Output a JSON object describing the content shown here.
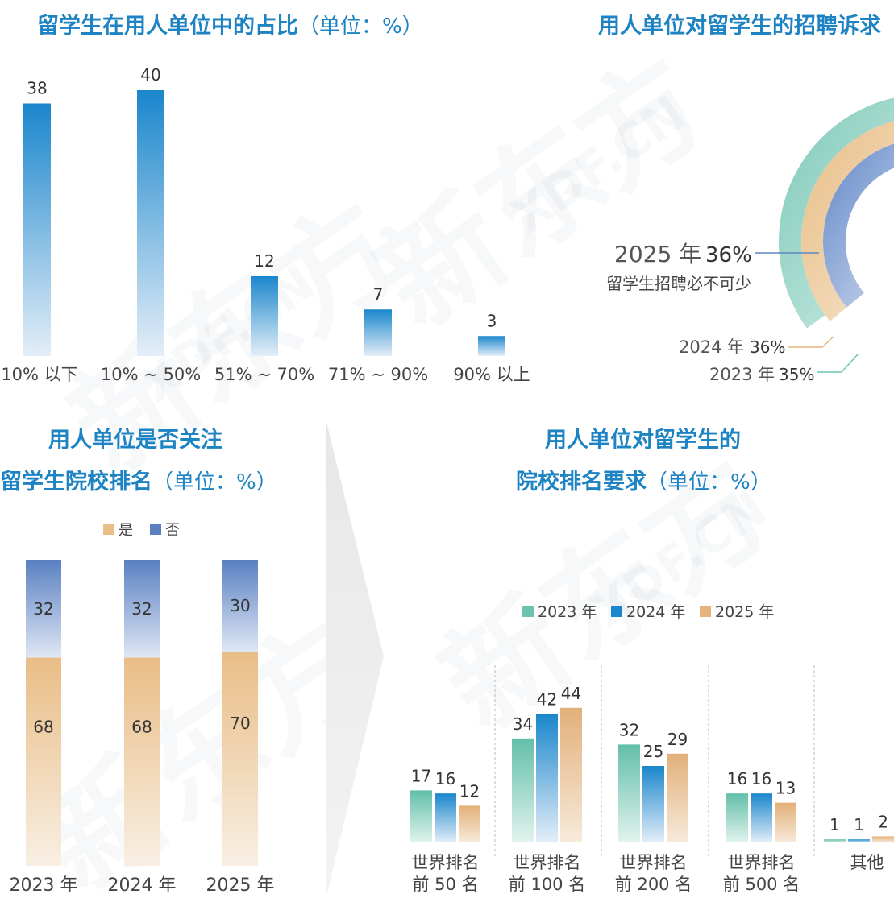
{
  "colors": {
    "title": "#1e83c3",
    "blue_dark": "#1a86cc",
    "blue_light": "#dceaf6",
    "teal": "#6cc3b0",
    "gold": "#e5b47c",
    "slate": "#5f86c7"
  },
  "watermark": "新东方",
  "watermark_url": "XDF.CN",
  "panel1": {
    "title": "留学生在用人单位中的占比",
    "unit": "（单位：%）"
  },
  "panel2": {
    "title": "用人单位对留学生的招聘诉求",
    "label_2025_year": "2025 年",
    "label_2025_value": "36%",
    "label_2025_desc": "留学生招聘必不可少",
    "label_2024": "2024 年",
    "label_2024_value": "36%",
    "label_2023": "2023 年",
    "label_2023_value": "35%"
  },
  "panel3": {
    "title_line1": "用人单位是否关注",
    "title_line2": "留学生院校排名",
    "unit": "（单位：%）"
  },
  "panel4": {
    "title_line1": "用人单位对留学生的",
    "title_line2": "院校排名要求",
    "unit": "（单位：%）"
  },
  "chart_data": [
    {
      "type": "bar",
      "title": "留学生在用人单位中的占比（单位：%）",
      "categories": [
        "10% 以下",
        "10% ~ 50%",
        "51% ~ 70%",
        "71% ~ 90%",
        "90% 以上"
      ],
      "values": [
        38,
        40,
        12,
        7,
        3
      ]
    },
    {
      "type": "pie",
      "title": "用人单位对留学生的招聘诉求",
      "categories": [
        "2025 年",
        "2024 年",
        "2023 年"
      ],
      "values": [
        36,
        36,
        35
      ],
      "annotation": "留学生招聘必不可少"
    },
    {
      "type": "bar",
      "stacked": true,
      "title": "用人单位是否关注留学生院校排名（单位：%）",
      "categories": [
        "2023 年",
        "2024 年",
        "2025 年"
      ],
      "series": [
        {
          "name": "是",
          "values": [
            68,
            68,
            70
          ]
        },
        {
          "name": "否",
          "values": [
            32,
            32,
            30
          ]
        }
      ],
      "legend": "top"
    },
    {
      "type": "bar",
      "title": "用人单位对留学生的院校排名要求（单位：%）",
      "categories": [
        [
          "世界排名",
          "前 50 名"
        ],
        [
          "世界排名",
          "前 100 名"
        ],
        [
          "世界排名",
          "前 200 名"
        ],
        [
          "世界排名",
          "前 500 名"
        ],
        [
          "其他"
        ]
      ],
      "series": [
        {
          "name": "2023 年",
          "values": [
            17,
            34,
            32,
            16,
            1
          ]
        },
        {
          "name": "2024 年",
          "values": [
            16,
            42,
            25,
            16,
            1
          ]
        },
        {
          "name": "2025 年",
          "values": [
            12,
            44,
            29,
            13,
            2
          ]
        }
      ],
      "legend": "top"
    }
  ]
}
